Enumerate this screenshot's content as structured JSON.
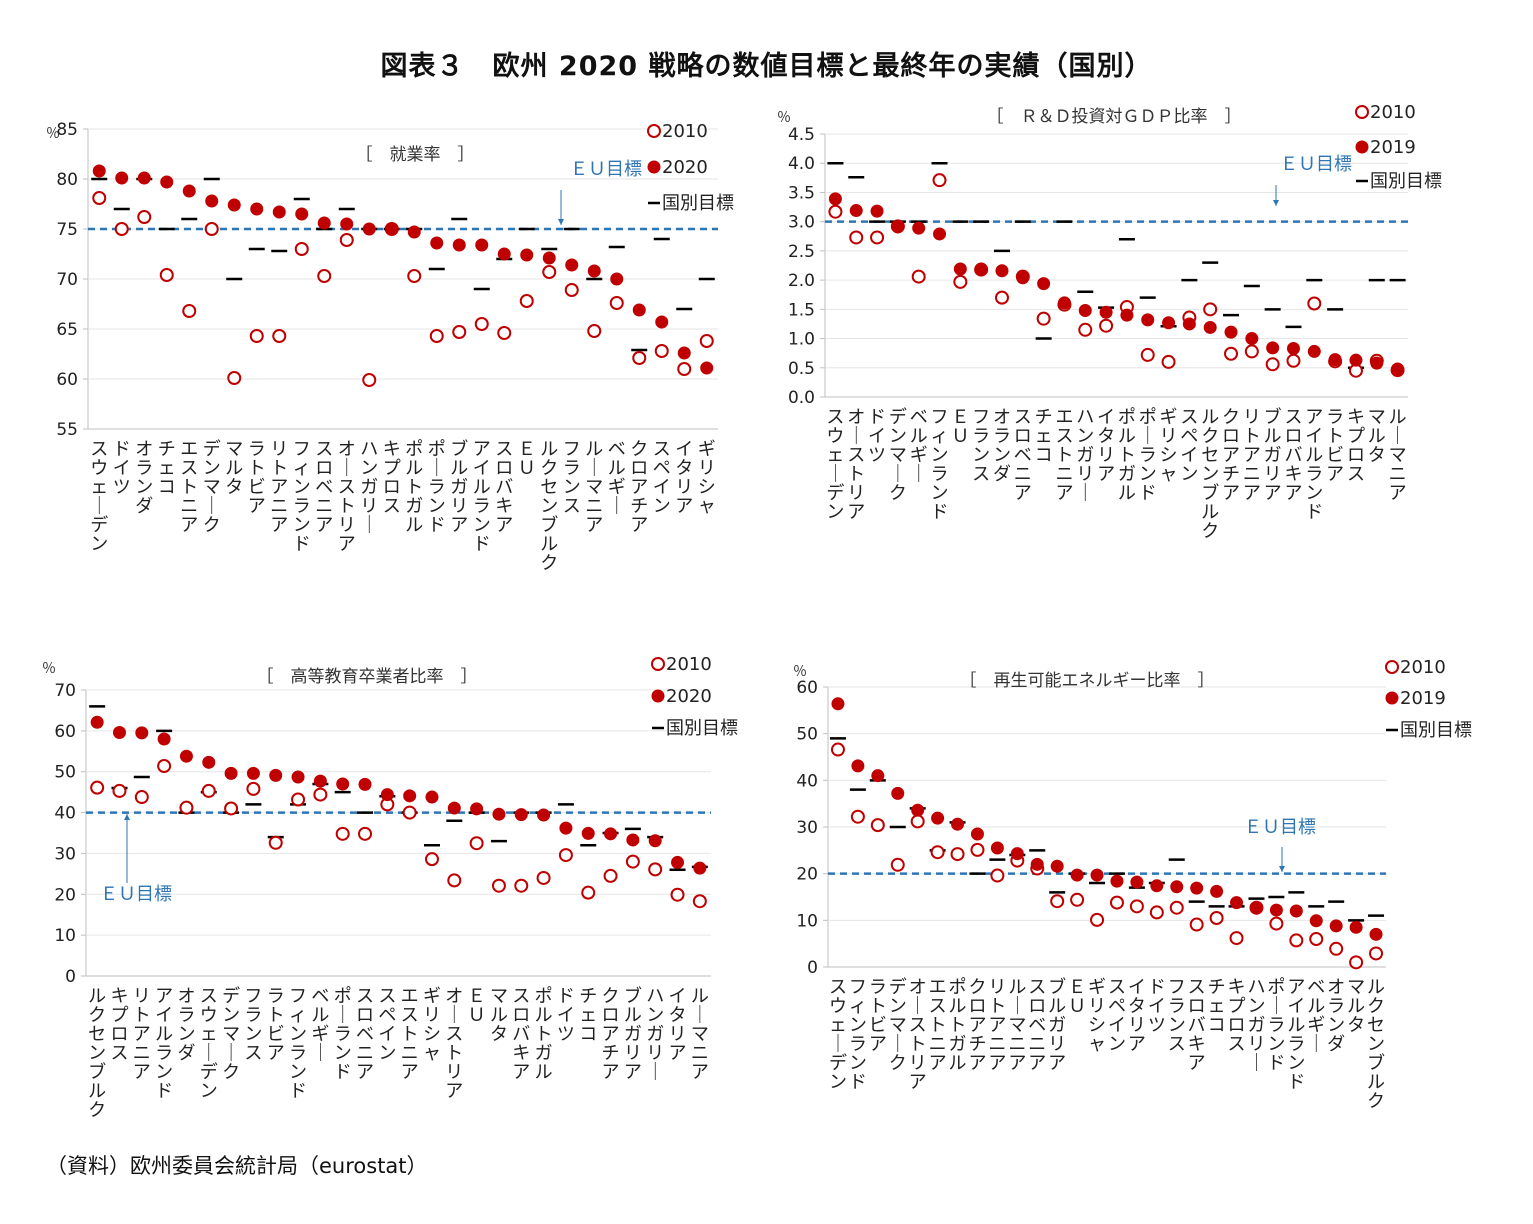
{
  "figure_title": "図表３　欧州 2020 戦略の数値目標と最終年の実績（国別）",
  "source": "（資料）欧州委員会統計局（eurostat）",
  "colors": {
    "marker": "#c00000",
    "target_line": "#2e75b6",
    "axis": "#bfbfbf",
    "target_mark": "#000000"
  },
  "chart_data": [
    {
      "type": "scatter",
      "title": "［　就業率　］",
      "unit": "％",
      "ylim": [
        55,
        85
      ],
      "yticks": [
        "55",
        "60",
        "65",
        "70",
        "75",
        "80",
        "85"
      ],
      "eu_target_value": 75,
      "eu_target_label": "ＥＵ目標",
      "legend": [
        "2010",
        "2020",
        "国別目標"
      ],
      "categories": [
        "スウェーデン",
        "ドイツ",
        "オランダ",
        "チェコ",
        "エストニア",
        "デンマーク",
        "マルタ",
        "ラトビア",
        "リトアニア",
        "フィンランド",
        "スロベニア",
        "オーストリア",
        "ハンガリー",
        "キプロス",
        "ポルトガル",
        "ポーランド",
        "ブルガリア",
        "アイルランド",
        "スロバキア",
        "ＥＵ",
        "ルクセンブルク",
        "フランス",
        "ルーマニア",
        "ベルギー",
        "クロアチア",
        "スペイン",
        "イタリア",
        "ギリシャ"
      ],
      "series": [
        {
          "name": "2010",
          "values": [
            78.1,
            75.0,
            76.2,
            70.4,
            66.8,
            75.0,
            60.1,
            64.3,
            64.3,
            73.0,
            70.3,
            73.9,
            59.9,
            75.0,
            70.3,
            64.3,
            64.7,
            65.5,
            64.6,
            67.8,
            70.7,
            68.9,
            64.8,
            67.6,
            62.1,
            62.8,
            61.0,
            63.8
          ]
        },
        {
          "name": "2020",
          "values": [
            80.8,
            80.1,
            80.1,
            79.7,
            78.8,
            77.8,
            77.4,
            77.0,
            76.7,
            76.5,
            75.6,
            75.5,
            75.0,
            75.0,
            74.7,
            73.6,
            73.4,
            73.4,
            72.5,
            72.4,
            72.1,
            71.4,
            70.8,
            70.0,
            66.9,
            65.7,
            62.6,
            61.1
          ]
        },
        {
          "name": "国別目標",
          "values": [
            80.0,
            77.0,
            80.0,
            75.0,
            76.0,
            80.0,
            70.0,
            73.0,
            72.8,
            78.0,
            75.0,
            77.0,
            75.0,
            75.0,
            75.0,
            71.0,
            76.0,
            69.0,
            72.0,
            75.0,
            73.0,
            75.0,
            70.0,
            73.2,
            62.9,
            74.0,
            67.0,
            70.0
          ]
        }
      ]
    },
    {
      "type": "scatter",
      "title": "［　Ｒ＆Ｄ投資対ＧＤＰ比率　］",
      "unit": "％",
      "ylim": [
        0,
        4.5
      ],
      "yticks": [
        "0.0",
        "0.5",
        "1.0",
        "1.5",
        "2.0",
        "2.5",
        "3.0",
        "3.5",
        "4.0",
        "4.5"
      ],
      "eu_target_value": 3.0,
      "eu_target_label": "ＥＵ目標",
      "legend": [
        "2010",
        "2019",
        "国別目標"
      ],
      "categories": [
        "スウェーデン",
        "オーストリア",
        "ドイツ",
        "デンマーク",
        "ベルギー",
        "フィンランド",
        "ＥＵ",
        "フランス",
        "オランダ",
        "スロベニア",
        "チェコ",
        "エストニア",
        "ハンガリー",
        "イタリア",
        "ポルトガル",
        "ポーランド",
        "ギリシャ",
        "スペイン",
        "ルクセンブルク",
        "クロアチア",
        "リトアニア",
        "ブルガリア",
        "スロバキア",
        "アイルランド",
        "ラトビア",
        "キプロス",
        "マルタ",
        "ルーマニア"
      ],
      "series": [
        {
          "name": "2010",
          "values": [
            3.17,
            2.73,
            2.73,
            2.92,
            2.06,
            3.71,
            1.97,
            2.18,
            1.7,
            2.06,
            1.34,
            1.58,
            1.15,
            1.22,
            1.54,
            0.72,
            0.6,
            1.36,
            1.5,
            0.74,
            0.78,
            0.56,
            0.62,
            1.6,
            0.61,
            0.45,
            0.62,
            0.46
          ]
        },
        {
          "name": "2019",
          "values": [
            3.39,
            3.19,
            3.18,
            2.91,
            2.89,
            2.79,
            2.19,
            2.19,
            2.16,
            2.04,
            1.94,
            1.61,
            1.48,
            1.45,
            1.4,
            1.32,
            1.27,
            1.25,
            1.19,
            1.11,
            1.0,
            0.84,
            0.83,
            0.78,
            0.64,
            0.63,
            0.58,
            0.48
          ]
        },
        {
          "name": "国別目標",
          "values": [
            4.0,
            3.76,
            3.0,
            3.0,
            3.0,
            4.0,
            3.0,
            3.0,
            2.5,
            3.0,
            1.0,
            3.0,
            1.8,
            1.53,
            2.7,
            1.7,
            1.21,
            2.0,
            2.3,
            1.4,
            1.9,
            1.5,
            1.2,
            2.0,
            1.5,
            0.5,
            2.0,
            2.0
          ]
        }
      ]
    },
    {
      "type": "scatter",
      "title": "［　高等教育卒業者比率　］",
      "unit": "％",
      "ylim": [
        0,
        70
      ],
      "yticks": [
        "0",
        "10",
        "20",
        "30",
        "40",
        "50",
        "60",
        "70"
      ],
      "eu_target_value": 40,
      "eu_target_label": "ＥＵ目標",
      "legend": [
        "2010",
        "2020",
        "国別目標"
      ],
      "categories": [
        "ルクセンブルク",
        "キプロス",
        "リトアニア",
        "アイルランド",
        "オランダ",
        "スウェーデン",
        "デンマーク",
        "フランス",
        "ラトビア",
        "フィンランド",
        "ベルギー",
        "ポーランド",
        "スロベニア",
        "スペイン",
        "エストニア",
        "ギリシャ",
        "オーストリア",
        "ＥＵ",
        "マルタ",
        "スロバキア",
        "ポルトガル",
        "ドイツ",
        "チェコ",
        "クロアチア",
        "ブルガリア",
        "ハンガリー",
        "イタリア",
        "ルーマニア"
      ],
      "series": [
        {
          "name": "2010",
          "values": [
            46.1,
            45.3,
            43.8,
            51.4,
            41.2,
            45.3,
            41.0,
            45.8,
            32.6,
            43.2,
            44.4,
            34.8,
            34.8,
            42.0,
            40.0,
            28.6,
            23.4,
            32.5,
            22.1,
            22.1,
            24.0,
            29.6,
            20.4,
            24.5,
            28.0,
            26.1,
            19.9,
            18.3
          ]
        },
        {
          "name": "2020",
          "values": [
            62.1,
            59.6,
            59.5,
            58.0,
            53.8,
            52.3,
            49.6,
            49.6,
            49.1,
            48.7,
            47.7,
            47.0,
            46.9,
            44.4,
            44.1,
            43.8,
            41.1,
            40.9,
            39.6,
            39.5,
            39.4,
            36.2,
            34.9,
            34.8,
            33.3,
            33.1,
            27.8,
            26.4
          ]
        },
        {
          "name": "国別目標",
          "values": [
            66.0,
            46.0,
            48.7,
            60.0,
            40.0,
            45.0,
            40.0,
            42.0,
            34.0,
            42.0,
            47.0,
            45.0,
            40.0,
            44.0,
            40.0,
            32.0,
            38.0,
            40.0,
            33.0,
            40.0,
            40.0,
            42.0,
            32.0,
            35.0,
            36.0,
            34.0,
            26.0,
            26.7
          ]
        }
      ]
    },
    {
      "type": "scatter",
      "title": "［　再生可能エネルギー比率　］",
      "unit": "％",
      "ylim": [
        0,
        60
      ],
      "yticks": [
        "0",
        "10",
        "20",
        "30",
        "40",
        "50",
        "60"
      ],
      "eu_target_value": 20,
      "eu_target_label": "ＥＵ目標",
      "legend": [
        "2010",
        "2019",
        "国別目標"
      ],
      "categories": [
        "スウェーデン",
        "フィンランド",
        "ラトビア",
        "デンマーク",
        "オーストリア",
        "エストニア",
        "ポルトガル",
        "クロアチア",
        "リトアニア",
        "ルーマニア",
        "スロベニア",
        "ブルガリア",
        "ＥＵ",
        "ギリシャ",
        "スペイン",
        "イタリア",
        "ドイツ",
        "フランス",
        "スロバキア",
        "チェコ",
        "キプロス",
        "ハンガリー",
        "ポーランド",
        "アイルランド",
        "ベルギー",
        "オランダ",
        "マルタ",
        "ルクセンブルク"
      ],
      "series": [
        {
          "name": "2010",
          "values": [
            46.6,
            32.2,
            30.4,
            21.9,
            31.2,
            24.6,
            24.2,
            25.1,
            19.6,
            22.8,
            21.1,
            14.1,
            14.4,
            10.1,
            13.8,
            13.0,
            11.7,
            12.7,
            9.1,
            10.5,
            6.2,
            12.7,
            9.3,
            5.7,
            6.0,
            3.9,
            1.0,
            2.9
          ]
        },
        {
          "name": "2019",
          "values": [
            56.4,
            43.1,
            41.0,
            37.2,
            33.6,
            31.9,
            30.6,
            28.5,
            25.5,
            24.3,
            22.0,
            21.6,
            19.7,
            19.7,
            18.4,
            18.2,
            17.4,
            17.2,
            16.9,
            16.2,
            13.8,
            12.6,
            12.2,
            12.0,
            9.9,
            8.8,
            8.5,
            7.0
          ]
        },
        {
          "name": "国別目標",
          "values": [
            49.0,
            38.0,
            40.0,
            30.0,
            34.0,
            25.0,
            31.0,
            20.0,
            23.0,
            24.0,
            25.0,
            16.0,
            20.0,
            18.0,
            20.0,
            17.0,
            18.0,
            23.0,
            14.0,
            13.0,
            13.0,
            14.65,
            15.0,
            16.0,
            13.0,
            14.0,
            10.0,
            11.0
          ]
        }
      ]
    }
  ]
}
